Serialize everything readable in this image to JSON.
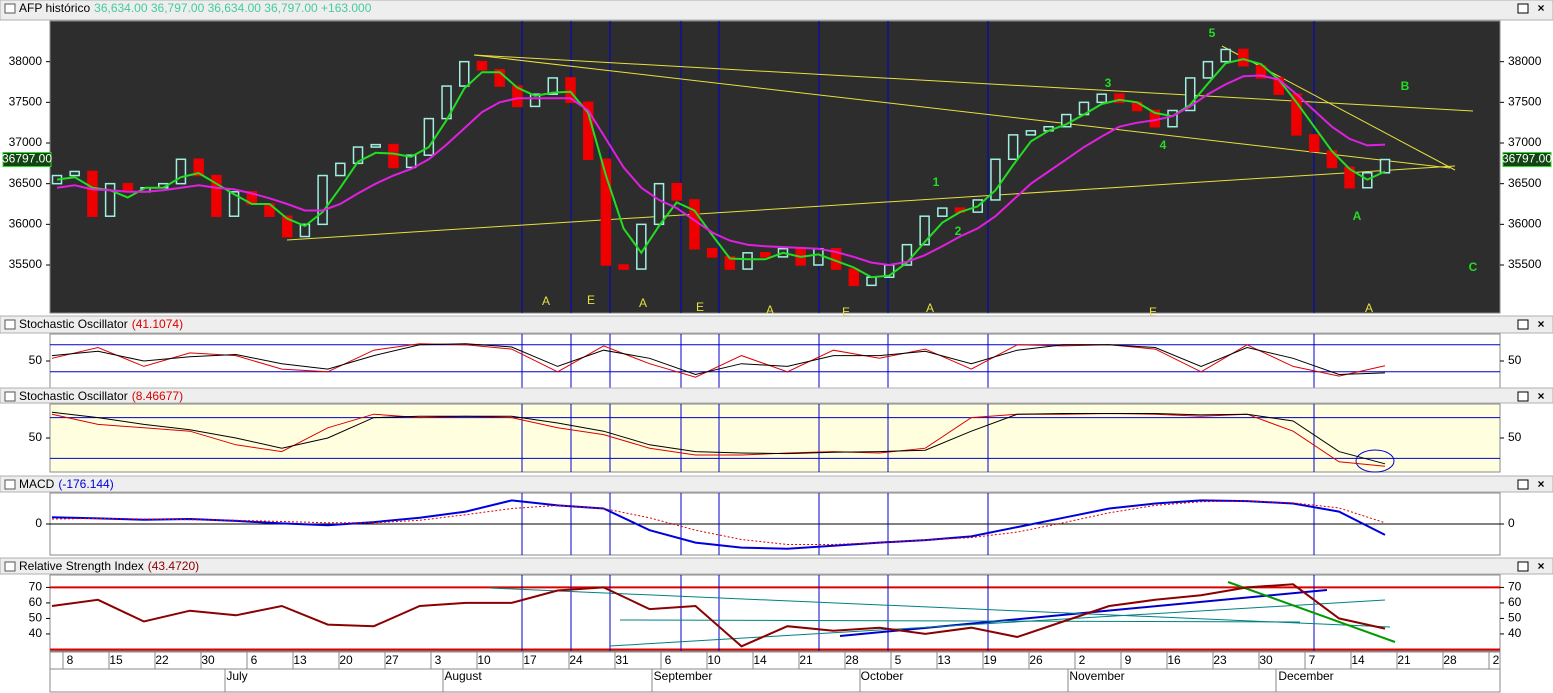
{
  "chart_data": [
    {
      "type": "candlestick",
      "title": "AFP histórico",
      "title_value": "36,634.00  36,797.00  36,634.00  36,797.00  +163.000",
      "last_price_label": "36797.00",
      "ylim": [
        34910,
        38500
      ],
      "yticks": [
        35500,
        36000,
        36500,
        37000,
        37500,
        38000
      ],
      "open": [
        36500,
        36600,
        36650,
        36100,
        36500,
        36400,
        36450,
        36500,
        36800,
        36600,
        36100,
        36400,
        36250,
        36100,
        35850,
        36000,
        36600,
        36750,
        36950,
        36980,
        36700,
        36850,
        37300,
        37700,
        38000,
        37900,
        37700,
        37450,
        37600,
        37800,
        37500,
        36800,
        35500,
        35450,
        36000,
        36500,
        36300,
        35700,
        35600,
        35450,
        35650,
        35600,
        35700,
        35500,
        35700,
        35450,
        35250,
        35350,
        35500,
        35750,
        36100,
        36200,
        36150,
        36300,
        36800,
        37100,
        37150,
        37200,
        37350,
        37500,
        37600,
        37500,
        37400,
        37200,
        37400,
        37800,
        38000,
        38150,
        37950,
        37800,
        37600,
        37100,
        36900,
        36700,
        36450,
        36634
      ],
      "close": [
        36600,
        36650,
        36100,
        36500,
        36400,
        36450,
        36500,
        36800,
        36600,
        36100,
        36400,
        36250,
        36100,
        35850,
        36000,
        36600,
        36750,
        36950,
        36980,
        36700,
        36850,
        37300,
        37700,
        38000,
        37900,
        37700,
        37450,
        37600,
        37800,
        37500,
        36800,
        35500,
        35450,
        36000,
        36500,
        36300,
        35700,
        35600,
        35450,
        35650,
        35600,
        35700,
        35500,
        35700,
        35450,
        35250,
        35350,
        35500,
        35750,
        36100,
        36200,
        36150,
        36300,
        36800,
        37100,
        37150,
        37200,
        37350,
        37500,
        37600,
        37500,
        37400,
        37200,
        37400,
        37800,
        38000,
        38150,
        37950,
        37800,
        37600,
        37100,
        36900,
        36700,
        36450,
        36634,
        36797
      ],
      "series": [
        {
          "color": "#22dd22",
          "values": [
            36550,
            36580,
            36450,
            36420,
            36330,
            36450,
            36450,
            36580,
            36630,
            36500,
            36370,
            36250,
            36250,
            36070,
            35980,
            36150,
            36450,
            36770,
            36880,
            36870,
            36830,
            36950,
            37280,
            37670,
            37870,
            37870,
            37680,
            37580,
            37620,
            37630,
            37370,
            36600,
            35950,
            35650,
            35980,
            36270,
            36170,
            35870,
            35580,
            35570,
            35570,
            35650,
            35600,
            35630,
            35550,
            35470,
            35350,
            35370,
            35530,
            35780,
            36020,
            36150,
            36220,
            36420,
            36730,
            37020,
            37150,
            37230,
            37350,
            37480,
            37530,
            37500,
            37370,
            37330,
            37470,
            37730,
            37980,
            38030,
            37970,
            37780,
            37500,
            37200,
            36900,
            36680,
            36550,
            36650
          ]
        },
        {
          "color": "#e020e0",
          "values": [
            36450,
            36480,
            36430,
            36420,
            36400,
            36400,
            36420,
            36450,
            36480,
            36450,
            36430,
            36380,
            36320,
            36250,
            36170,
            36170,
            36250,
            36380,
            36500,
            36600,
            36680,
            36800,
            36980,
            37180,
            37380,
            37500,
            37550,
            37550,
            37550,
            37550,
            37400,
            37050,
            36700,
            36450,
            36300,
            36200,
            36050,
            35900,
            35800,
            35750,
            35730,
            35720,
            35710,
            35700,
            35660,
            35600,
            35530,
            35500,
            35540,
            35620,
            35730,
            35850,
            35950,
            36100,
            36300,
            36500,
            36650,
            36800,
            36950,
            37080,
            37200,
            37250,
            37280,
            37330,
            37450,
            37600,
            37720,
            37820,
            37830,
            37780,
            37600,
            37400,
            37200,
            37050,
            36970,
            36980
          ]
        }
      ],
      "wave_labels": [
        "1",
        "2",
        "3",
        "4",
        "5",
        "A",
        "B",
        "C"
      ],
      "cycle_labels": [
        "A",
        "E",
        "A",
        "E",
        "A",
        "E",
        "A",
        "E",
        "A"
      ]
    },
    {
      "type": "line",
      "title": "Stochastic Oscillator",
      "title_value": "(41.1074)",
      "title_value_color": "#dd0000",
      "background": "#ffffff",
      "ylim": [
        0,
        100
      ],
      "yticks": [
        50
      ],
      "levels": [
        30,
        80
      ],
      "series": [
        {
          "color": "#dd0000",
          "values": [
            55,
            75,
            40,
            65,
            60,
            35,
            30,
            70,
            82,
            80,
            72,
            30,
            78,
            45,
            20,
            60,
            30,
            70,
            55,
            72,
            35,
            80,
            78,
            80,
            72,
            30,
            80,
            40,
            22,
            41.1074
          ]
        },
        {
          "color": "#000000",
          "values": [
            60,
            68,
            50,
            58,
            62,
            45,
            35,
            60,
            80,
            82,
            76,
            40,
            70,
            55,
            25,
            45,
            40,
            60,
            60,
            68,
            45,
            70,
            80,
            80,
            75,
            40,
            75,
            55,
            25,
            28
          ]
        }
      ]
    },
    {
      "type": "line",
      "title": "Stochastic Oscillator",
      "title_value": "(8.46677)",
      "title_value_color": "#dd0000",
      "background": "#ffffe0",
      "ylim": [
        0,
        100
      ],
      "yticks": [
        50
      ],
      "levels": [
        20,
        80
      ],
      "series": [
        {
          "color": "#dd0000",
          "values": [
            85,
            70,
            65,
            60,
            40,
            30,
            65,
            85,
            80,
            82,
            80,
            65,
            55,
            35,
            25,
            25,
            28,
            30,
            28,
            35,
            80,
            85,
            85,
            86,
            85,
            82,
            85,
            60,
            15,
            8.46677
          ]
        },
        {
          "color": "#000000",
          "values": [
            88,
            80,
            70,
            62,
            50,
            35,
            50,
            80,
            82,
            82,
            82,
            72,
            60,
            40,
            30,
            28,
            27,
            29,
            30,
            32,
            60,
            85,
            86,
            86,
            86,
            84,
            85,
            75,
            30,
            12
          ]
        }
      ]
    },
    {
      "type": "line",
      "title": "MACD",
      "title_value": "(-176.144)",
      "title_value_color": "#0000dd",
      "background": "#ffffff",
      "ylim": [
        -500,
        500
      ],
      "yticks": [
        0
      ],
      "levels": [
        0
      ],
      "series": [
        {
          "color": "#0000dd",
          "width": 2,
          "values": [
            110,
            90,
            70,
            80,
            50,
            10,
            -20,
            30,
            100,
            200,
            380,
            300,
            250,
            -100,
            -300,
            -380,
            -400,
            -350,
            -300,
            -260,
            -200,
            -50,
            100,
            250,
            330,
            380,
            370,
            330,
            200,
            -176.144
          ]
        },
        {
          "color": "#dd0000",
          "dashed": true,
          "values": [
            80,
            90,
            80,
            70,
            60,
            40,
            20,
            20,
            60,
            150,
            250,
            300,
            250,
            100,
            -100,
            -250,
            -330,
            -330,
            -300,
            -260,
            -220,
            -130,
            20,
            180,
            300,
            360,
            370,
            340,
            260,
            20
          ]
        }
      ]
    },
    {
      "type": "line",
      "title": "Relative Strength Index",
      "title_value": "(43.4720)",
      "title_value_color": "#8b0000",
      "background": "#ffffff",
      "ylim": [
        29,
        78
      ],
      "yticks": [
        40,
        50,
        60,
        70
      ],
      "levels": [
        30,
        70
      ],
      "level_color": "#dd0000",
      "series": [
        {
          "color": "#8b0000",
          "width": 2,
          "values": [
            58,
            62,
            48,
            55,
            52,
            58,
            46,
            45,
            58,
            60,
            60,
            68,
            70,
            56,
            58,
            32,
            45,
            42,
            44,
            40,
            44,
            38,
            48,
            58,
            62,
            65,
            70,
            72,
            50,
            43.472
          ]
        }
      ]
    }
  ],
  "x_axis": {
    "days": [
      "8",
      "15",
      "22",
      "30",
      "6",
      "13",
      "20",
      "27",
      "3",
      "10",
      "17",
      "24",
      "31",
      "6",
      "10",
      "14",
      "21",
      "28",
      "5",
      "13",
      "19",
      "26",
      "2",
      "9",
      "16",
      "23",
      "30",
      "7",
      "14",
      "21",
      "28",
      "2"
    ],
    "months": [
      "July",
      "August",
      "September",
      "October",
      "November",
      "December"
    ]
  }
}
